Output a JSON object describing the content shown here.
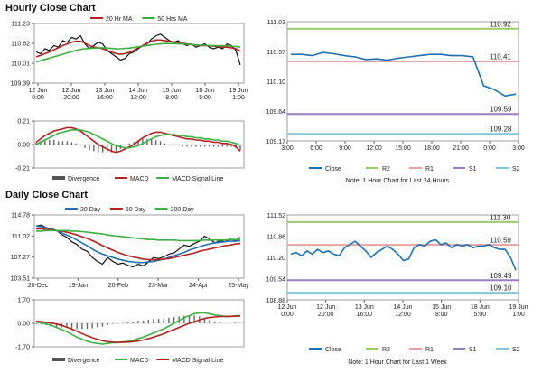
{
  "hourly": {
    "title": "Hourly Close Chart",
    "price": {
      "legend": [
        {
          "name": "20 Hr MA",
          "color": "#b22222"
        },
        {
          "name": "50 Hrs MA",
          "color": "#3cb043"
        }
      ],
      "yticks": [
        "111.23",
        "110.62",
        "110.01",
        "109.39"
      ],
      "ylim": [
        109.39,
        111.23
      ],
      "xticks": [
        [
          "12 Jun",
          "0:00"
        ],
        [
          "12 Jun",
          "20:00"
        ],
        [
          "13 Jun",
          "16:00"
        ],
        [
          "14 Jun",
          "12:00"
        ],
        [
          "15 Jun",
          "8:00"
        ],
        [
          "18 Jun",
          "5:00"
        ],
        [
          "19 Jun",
          "1:00"
        ]
      ],
      "close": [
        110.35,
        110.3,
        110.45,
        110.4,
        110.55,
        110.5,
        110.7,
        110.65,
        110.8,
        110.75,
        110.85,
        110.6,
        110.45,
        110.55,
        110.65,
        110.6,
        110.4,
        110.3,
        110.2,
        110.1,
        110.15,
        110.3,
        110.35,
        110.45,
        110.55,
        110.6,
        110.75,
        110.85,
        110.9,
        110.8,
        110.7,
        110.65,
        110.7,
        110.6,
        110.55,
        110.6,
        110.5,
        110.55,
        110.6,
        110.5,
        110.45,
        110.5,
        110.45,
        110.6,
        110.55,
        110.4,
        109.95
      ],
      "ma20": [
        110.2,
        110.25,
        110.3,
        110.35,
        110.42,
        110.48,
        110.55,
        110.6,
        110.65,
        110.68,
        110.68,
        110.62,
        110.55,
        110.5,
        110.48,
        110.45,
        110.4,
        110.35,
        110.3,
        110.28,
        110.3,
        110.34,
        110.4,
        110.48,
        110.55,
        110.62,
        110.68,
        110.72,
        110.72,
        110.7,
        110.68,
        110.66,
        110.64,
        110.62,
        110.6,
        110.58,
        110.56,
        110.55,
        110.55,
        110.54,
        110.53,
        110.52,
        110.5,
        110.5,
        110.48,
        110.45,
        110.38
      ],
      "ma50": [
        110.05,
        110.08,
        110.12,
        110.16,
        110.2,
        110.24,
        110.28,
        110.32,
        110.36,
        110.4,
        110.43,
        110.45,
        110.46,
        110.47,
        110.48,
        110.48,
        110.47,
        110.46,
        110.45,
        110.45,
        110.46,
        110.47,
        110.49,
        110.51,
        110.53,
        110.55,
        110.57,
        110.59,
        110.6,
        110.61,
        110.61,
        110.61,
        110.6,
        110.6,
        110.59,
        110.58,
        110.57,
        110.56,
        110.56,
        110.55,
        110.55,
        110.54,
        110.54,
        110.54,
        110.53,
        110.52,
        110.5
      ]
    },
    "macd": {
      "yticks": [
        "0.21",
        "0.00",
        "-0.21"
      ],
      "ylim": [
        -0.21,
        0.21
      ],
      "legend": [
        {
          "name": "Divergence",
          "color": "#555555"
        },
        {
          "name": "MACD",
          "color": "#b22222"
        },
        {
          "name": "MACD Signal Line",
          "color": "#3cb043"
        }
      ],
      "macd": [
        0.02,
        0.05,
        0.08,
        0.1,
        0.12,
        0.13,
        0.14,
        0.15,
        0.15,
        0.14,
        0.12,
        0.09,
        0.06,
        0.03,
        0.0,
        -0.02,
        -0.04,
        -0.06,
        -0.07,
        -0.06,
        -0.04,
        -0.02,
        0.0,
        0.03,
        0.06,
        0.08,
        0.1,
        0.11,
        0.11,
        0.1,
        0.09,
        0.08,
        0.07,
        0.06,
        0.05,
        0.05,
        0.04,
        0.04,
        0.03,
        0.03,
        0.02,
        0.02,
        0.01,
        0.01,
        0.0,
        -0.02,
        -0.06
      ],
      "signal": [
        0.0,
        0.02,
        0.04,
        0.06,
        0.08,
        0.1,
        0.11,
        0.12,
        0.13,
        0.13,
        0.13,
        0.12,
        0.11,
        0.09,
        0.07,
        0.05,
        0.03,
        0.01,
        -0.01,
        -0.02,
        -0.03,
        -0.03,
        -0.02,
        -0.01,
        0.01,
        0.03,
        0.05,
        0.07,
        0.08,
        0.09,
        0.09,
        0.09,
        0.08,
        0.08,
        0.07,
        0.07,
        0.06,
        0.06,
        0.05,
        0.05,
        0.04,
        0.04,
        0.03,
        0.03,
        0.02,
        0.01,
        -0.01
      ]
    },
    "levels": {
      "yticks": [
        "111.03",
        "110.57",
        "110.10",
        "109.64",
        "109.17"
      ],
      "ylim": [
        109.17,
        111.03
      ],
      "xticks": [
        "3:00",
        "6:00",
        "9:00",
        "12:00",
        "15:00",
        "18:00",
        "21:00",
        "0:00",
        "3:00"
      ],
      "close": [
        110.52,
        110.52,
        110.5,
        110.55,
        110.53,
        110.5,
        110.48,
        110.44,
        110.45,
        110.43,
        110.46,
        110.48,
        110.5,
        110.52,
        110.52,
        110.5,
        110.5,
        110.48,
        110.03,
        109.97,
        109.87,
        109.9
      ],
      "lines": [
        {
          "name": "R2",
          "value": 110.92,
          "label": "110.92",
          "color": "#9acd6a"
        },
        {
          "name": "R1",
          "value": 110.41,
          "label": "110.41",
          "color": "#e8a0a0"
        },
        {
          "name": "S1",
          "value": 109.59,
          "label": "109.59",
          "color": "#9a7fc0"
        },
        {
          "name": "S2",
          "value": 109.28,
          "label": "109.28",
          "color": "#7fc6d6"
        }
      ],
      "legend": [
        {
          "name": "Close",
          "color": "#1f6fb2"
        },
        {
          "name": "R2",
          "color": "#9acd6a"
        },
        {
          "name": "R1",
          "color": "#e8a0a0"
        },
        {
          "name": "S1",
          "color": "#9a7fc0"
        },
        {
          "name": "S2",
          "color": "#7fc6d6"
        }
      ],
      "note": "Note: 1 Hour Chart for Last 24 Hours"
    }
  },
  "daily": {
    "title": "Daily Close Chart",
    "price": {
      "legend": [
        {
          "name": "20 Day",
          "color": "#1f6fb2"
        },
        {
          "name": "50 Day",
          "color": "#b22222"
        },
        {
          "name": "200 Day",
          "color": "#3cb043"
        }
      ],
      "yticks": [
        "114.78",
        "111.02",
        "107.27",
        "103.51"
      ],
      "ylim": [
        103.51,
        114.78
      ],
      "xticks": [
        "20-Dec",
        "19-Jan",
        "20-Feb",
        "23-Mar",
        "24-Apr",
        "25-May"
      ],
      "close": [
        112.8,
        113.0,
        112.5,
        112.2,
        112.0,
        111.3,
        110.8,
        110.0,
        109.5,
        108.7,
        108.3,
        107.2,
        106.5,
        106.0,
        107.2,
        106.5,
        106.0,
        106.2,
        105.8,
        105.5,
        106.0,
        105.7,
        106.4,
        107.2,
        107.0,
        107.3,
        107.8,
        108.0,
        108.7,
        109.4,
        109.2,
        109.7,
        110.1,
        111.0,
        110.5,
        109.8,
        110.2,
        110.0,
        110.5,
        110.2,
        110.8
      ],
      "ma20": [
        112.8,
        112.7,
        112.5,
        112.3,
        112.0,
        111.6,
        111.2,
        110.8,
        110.3,
        109.8,
        109.3,
        108.7,
        108.2,
        107.8,
        107.5,
        107.2,
        106.9,
        106.7,
        106.5,
        106.4,
        106.3,
        106.3,
        106.4,
        106.5,
        106.7,
        106.9,
        107.2,
        107.5,
        107.8,
        108.1,
        108.5,
        108.8,
        109.1,
        109.4,
        109.6,
        109.8,
        109.9,
        110.0,
        110.1,
        110.1,
        110.2
      ],
      "ma50": [
        112.3,
        112.3,
        112.2,
        112.1,
        112.0,
        111.9,
        111.7,
        111.5,
        111.2,
        110.9,
        110.6,
        110.2,
        109.8,
        109.3,
        108.9,
        108.5,
        108.1,
        107.8,
        107.5,
        107.3,
        107.1,
        106.9,
        106.8,
        106.8,
        106.8,
        106.9,
        107.0,
        107.2,
        107.4,
        107.6,
        107.8,
        108.0,
        108.3,
        108.5,
        108.7,
        108.9,
        109.1,
        109.3,
        109.4,
        109.6,
        109.7
      ],
      "ma200": [
        111.9,
        111.9,
        112.0,
        112.0,
        112.0,
        112.0,
        112.0,
        111.9,
        111.9,
        111.8,
        111.7,
        111.6,
        111.5,
        111.4,
        111.2,
        111.1,
        111.0,
        110.9,
        110.8,
        110.7,
        110.6,
        110.5,
        110.4,
        110.4,
        110.3,
        110.3,
        110.3,
        110.3,
        110.2,
        110.2,
        110.2,
        110.2,
        110.2,
        110.3,
        110.3,
        110.3,
        110.3,
        110.3,
        110.4,
        110.4,
        110.4
      ]
    },
    "macd": {
      "yticks": [
        "1.70",
        "0.00",
        "-1.70"
      ],
      "ylim": [
        -1.7,
        1.7
      ],
      "legend": [
        {
          "name": "Divergence",
          "color": "#555555"
        },
        {
          "name": "MACD",
          "color": "#3cb043"
        },
        {
          "name": "MACD Signal Line",
          "color": "#b22222"
        }
      ],
      "macd": [
        0.1,
        0.05,
        -0.05,
        -0.15,
        -0.3,
        -0.45,
        -0.6,
        -0.8,
        -1.0,
        -1.15,
        -1.3,
        -1.4,
        -1.45,
        -1.5,
        -1.45,
        -1.4,
        -1.4,
        -1.35,
        -1.3,
        -1.25,
        -1.1,
        -1.0,
        -0.85,
        -0.7,
        -0.55,
        -0.4,
        -0.2,
        0.0,
        0.2,
        0.4,
        0.55,
        0.7,
        0.75,
        0.75,
        0.7,
        0.6,
        0.55,
        0.5,
        0.5,
        0.55,
        0.55
      ],
      "signal": [
        0.15,
        0.12,
        0.08,
        0.02,
        -0.05,
        -0.15,
        -0.28,
        -0.42,
        -0.58,
        -0.74,
        -0.9,
        -1.04,
        -1.16,
        -1.26,
        -1.33,
        -1.36,
        -1.38,
        -1.38,
        -1.36,
        -1.33,
        -1.28,
        -1.2,
        -1.11,
        -1.0,
        -0.88,
        -0.75,
        -0.6,
        -0.45,
        -0.3,
        -0.15,
        0.0,
        0.12,
        0.25,
        0.35,
        0.42,
        0.46,
        0.49,
        0.5,
        0.5,
        0.51,
        0.52
      ]
    },
    "levels": {
      "yticks": [
        "111.52",
        "110.86",
        "110.20",
        "109.54",
        "108.88"
      ],
      "ylim": [
        108.88,
        111.52
      ],
      "xticks": [
        [
          "12 Jun",
          "0:00"
        ],
        [
          "12 Jun",
          "20:00"
        ],
        [
          "13 Jun",
          "16:00"
        ],
        [
          "14 Jun",
          "12:00"
        ],
        [
          "15 Jun",
          "8:00"
        ],
        [
          "18 Jun",
          "5:00"
        ],
        [
          "19 Jun",
          "1:00"
        ]
      ],
      "close": [
        110.3,
        110.35,
        110.25,
        110.4,
        110.3,
        110.45,
        110.35,
        110.4,
        110.3,
        110.25,
        110.5,
        110.6,
        110.7,
        110.55,
        110.4,
        110.2,
        110.35,
        110.45,
        110.55,
        110.45,
        110.3,
        110.1,
        110.15,
        110.5,
        110.6,
        110.55,
        110.7,
        110.75,
        110.6,
        110.65,
        110.5,
        110.6,
        110.55,
        110.6,
        110.5,
        110.55,
        110.55,
        110.6,
        110.5,
        110.45,
        110.45,
        110.2,
        109.8
      ],
      "lines": [
        {
          "name": "R2",
          "value": 111.3,
          "label": "111.30",
          "color": "#9acd6a"
        },
        {
          "name": "R1",
          "value": 110.59,
          "label": "110.59",
          "color": "#e8a0a0"
        },
        {
          "name": "S1",
          "value": 109.49,
          "label": "109.49",
          "color": "#9a7fc0"
        },
        {
          "name": "S2",
          "value": 109.1,
          "label": "109.10",
          "color": "#7fc6d6"
        }
      ],
      "legend": [
        {
          "name": "Close",
          "color": "#1f6fb2"
        },
        {
          "name": "R2",
          "color": "#9acd6a"
        },
        {
          "name": "R1",
          "color": "#e8a0a0"
        },
        {
          "name": "S1",
          "color": "#9a7fc0"
        },
        {
          "name": "S2",
          "color": "#7fc6d6"
        }
      ],
      "note": "Note: 1 Hour Chart for Last 1 Week"
    }
  },
  "chart_data": [
    {
      "type": "line",
      "title": "Hourly Close Chart",
      "series": [
        {
          "name": "20 Hr MA"
        },
        {
          "name": "50 Hrs MA"
        }
      ],
      "ylim": [
        109.39,
        111.23
      ]
    },
    {
      "type": "line",
      "series": [
        {
          "name": "Divergence"
        },
        {
          "name": "MACD"
        },
        {
          "name": "MACD Signal Line"
        }
      ],
      "ylim": [
        -0.21,
        0.21
      ]
    },
    {
      "type": "line",
      "series": [
        {
          "name": "Close"
        },
        {
          "name": "R2",
          "value": 110.92
        },
        {
          "name": "R1",
          "value": 110.41
        },
        {
          "name": "S1",
          "value": 109.59
        },
        {
          "name": "S2",
          "value": 109.28
        }
      ],
      "ylim": [
        109.17,
        111.03
      ]
    },
    {
      "type": "line",
      "title": "Daily Close Chart",
      "series": [
        {
          "name": "20 Day"
        },
        {
          "name": "50 Day"
        },
        {
          "name": "200 Day"
        }
      ],
      "ylim": [
        103.51,
        114.78
      ]
    },
    {
      "type": "line",
      "series": [
        {
          "name": "Divergence"
        },
        {
          "name": "MACD"
        },
        {
          "name": "MACD Signal Line"
        }
      ],
      "ylim": [
        -1.7,
        1.7
      ]
    },
    {
      "type": "line",
      "series": [
        {
          "name": "Close"
        },
        {
          "name": "R2",
          "value": 111.3
        },
        {
          "name": "R1",
          "value": 110.59
        },
        {
          "name": "S1",
          "value": 109.49
        },
        {
          "name": "S2",
          "value": 109.1
        }
      ],
      "ylim": [
        108.88,
        111.52
      ]
    }
  ]
}
